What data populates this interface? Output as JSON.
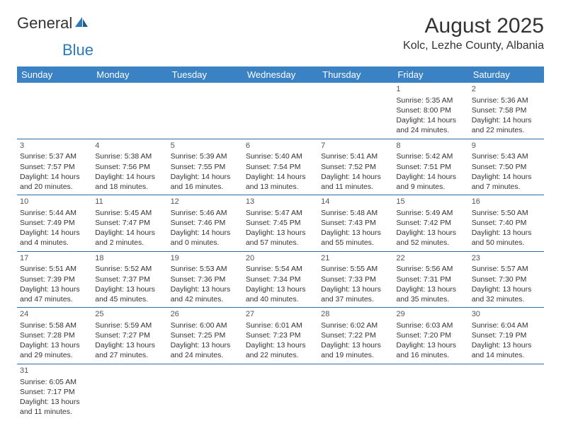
{
  "logo": {
    "word1": "General",
    "word2": "Blue"
  },
  "title": "August 2025",
  "location": "Kolc, Lezhe County, Albania",
  "colors": {
    "header_bg": "#3b82c4",
    "header_text": "#ffffff",
    "row_border": "#2a6ca8",
    "logo_blue": "#2a7ab8",
    "text": "#333333",
    "background": "#ffffff"
  },
  "day_headers": [
    "Sunday",
    "Monday",
    "Tuesday",
    "Wednesday",
    "Thursday",
    "Friday",
    "Saturday"
  ],
  "weeks": [
    [
      null,
      null,
      null,
      null,
      null,
      {
        "n": "1",
        "sr": "Sunrise: 5:35 AM",
        "ss": "Sunset: 8:00 PM",
        "d1": "Daylight: 14 hours",
        "d2": "and 24 minutes."
      },
      {
        "n": "2",
        "sr": "Sunrise: 5:36 AM",
        "ss": "Sunset: 7:58 PM",
        "d1": "Daylight: 14 hours",
        "d2": "and 22 minutes."
      }
    ],
    [
      {
        "n": "3",
        "sr": "Sunrise: 5:37 AM",
        "ss": "Sunset: 7:57 PM",
        "d1": "Daylight: 14 hours",
        "d2": "and 20 minutes."
      },
      {
        "n": "4",
        "sr": "Sunrise: 5:38 AM",
        "ss": "Sunset: 7:56 PM",
        "d1": "Daylight: 14 hours",
        "d2": "and 18 minutes."
      },
      {
        "n": "5",
        "sr": "Sunrise: 5:39 AM",
        "ss": "Sunset: 7:55 PM",
        "d1": "Daylight: 14 hours",
        "d2": "and 16 minutes."
      },
      {
        "n": "6",
        "sr": "Sunrise: 5:40 AM",
        "ss": "Sunset: 7:54 PM",
        "d1": "Daylight: 14 hours",
        "d2": "and 13 minutes."
      },
      {
        "n": "7",
        "sr": "Sunrise: 5:41 AM",
        "ss": "Sunset: 7:52 PM",
        "d1": "Daylight: 14 hours",
        "d2": "and 11 minutes."
      },
      {
        "n": "8",
        "sr": "Sunrise: 5:42 AM",
        "ss": "Sunset: 7:51 PM",
        "d1": "Daylight: 14 hours",
        "d2": "and 9 minutes."
      },
      {
        "n": "9",
        "sr": "Sunrise: 5:43 AM",
        "ss": "Sunset: 7:50 PM",
        "d1": "Daylight: 14 hours",
        "d2": "and 7 minutes."
      }
    ],
    [
      {
        "n": "10",
        "sr": "Sunrise: 5:44 AM",
        "ss": "Sunset: 7:49 PM",
        "d1": "Daylight: 14 hours",
        "d2": "and 4 minutes."
      },
      {
        "n": "11",
        "sr": "Sunrise: 5:45 AM",
        "ss": "Sunset: 7:47 PM",
        "d1": "Daylight: 14 hours",
        "d2": "and 2 minutes."
      },
      {
        "n": "12",
        "sr": "Sunrise: 5:46 AM",
        "ss": "Sunset: 7:46 PM",
        "d1": "Daylight: 14 hours",
        "d2": "and 0 minutes."
      },
      {
        "n": "13",
        "sr": "Sunrise: 5:47 AM",
        "ss": "Sunset: 7:45 PM",
        "d1": "Daylight: 13 hours",
        "d2": "and 57 minutes."
      },
      {
        "n": "14",
        "sr": "Sunrise: 5:48 AM",
        "ss": "Sunset: 7:43 PM",
        "d1": "Daylight: 13 hours",
        "d2": "and 55 minutes."
      },
      {
        "n": "15",
        "sr": "Sunrise: 5:49 AM",
        "ss": "Sunset: 7:42 PM",
        "d1": "Daylight: 13 hours",
        "d2": "and 52 minutes."
      },
      {
        "n": "16",
        "sr": "Sunrise: 5:50 AM",
        "ss": "Sunset: 7:40 PM",
        "d1": "Daylight: 13 hours",
        "d2": "and 50 minutes."
      }
    ],
    [
      {
        "n": "17",
        "sr": "Sunrise: 5:51 AM",
        "ss": "Sunset: 7:39 PM",
        "d1": "Daylight: 13 hours",
        "d2": "and 47 minutes."
      },
      {
        "n": "18",
        "sr": "Sunrise: 5:52 AM",
        "ss": "Sunset: 7:37 PM",
        "d1": "Daylight: 13 hours",
        "d2": "and 45 minutes."
      },
      {
        "n": "19",
        "sr": "Sunrise: 5:53 AM",
        "ss": "Sunset: 7:36 PM",
        "d1": "Daylight: 13 hours",
        "d2": "and 42 minutes."
      },
      {
        "n": "20",
        "sr": "Sunrise: 5:54 AM",
        "ss": "Sunset: 7:34 PM",
        "d1": "Daylight: 13 hours",
        "d2": "and 40 minutes."
      },
      {
        "n": "21",
        "sr": "Sunrise: 5:55 AM",
        "ss": "Sunset: 7:33 PM",
        "d1": "Daylight: 13 hours",
        "d2": "and 37 minutes."
      },
      {
        "n": "22",
        "sr": "Sunrise: 5:56 AM",
        "ss": "Sunset: 7:31 PM",
        "d1": "Daylight: 13 hours",
        "d2": "and 35 minutes."
      },
      {
        "n": "23",
        "sr": "Sunrise: 5:57 AM",
        "ss": "Sunset: 7:30 PM",
        "d1": "Daylight: 13 hours",
        "d2": "and 32 minutes."
      }
    ],
    [
      {
        "n": "24",
        "sr": "Sunrise: 5:58 AM",
        "ss": "Sunset: 7:28 PM",
        "d1": "Daylight: 13 hours",
        "d2": "and 29 minutes."
      },
      {
        "n": "25",
        "sr": "Sunrise: 5:59 AM",
        "ss": "Sunset: 7:27 PM",
        "d1": "Daylight: 13 hours",
        "d2": "and 27 minutes."
      },
      {
        "n": "26",
        "sr": "Sunrise: 6:00 AM",
        "ss": "Sunset: 7:25 PM",
        "d1": "Daylight: 13 hours",
        "d2": "and 24 minutes."
      },
      {
        "n": "27",
        "sr": "Sunrise: 6:01 AM",
        "ss": "Sunset: 7:23 PM",
        "d1": "Daylight: 13 hours",
        "d2": "and 22 minutes."
      },
      {
        "n": "28",
        "sr": "Sunrise: 6:02 AM",
        "ss": "Sunset: 7:22 PM",
        "d1": "Daylight: 13 hours",
        "d2": "and 19 minutes."
      },
      {
        "n": "29",
        "sr": "Sunrise: 6:03 AM",
        "ss": "Sunset: 7:20 PM",
        "d1": "Daylight: 13 hours",
        "d2": "and 16 minutes."
      },
      {
        "n": "30",
        "sr": "Sunrise: 6:04 AM",
        "ss": "Sunset: 7:19 PM",
        "d1": "Daylight: 13 hours",
        "d2": "and 14 minutes."
      }
    ],
    [
      {
        "n": "31",
        "sr": "Sunrise: 6:05 AM",
        "ss": "Sunset: 7:17 PM",
        "d1": "Daylight: 13 hours",
        "d2": "and 11 minutes."
      },
      null,
      null,
      null,
      null,
      null,
      null
    ]
  ]
}
